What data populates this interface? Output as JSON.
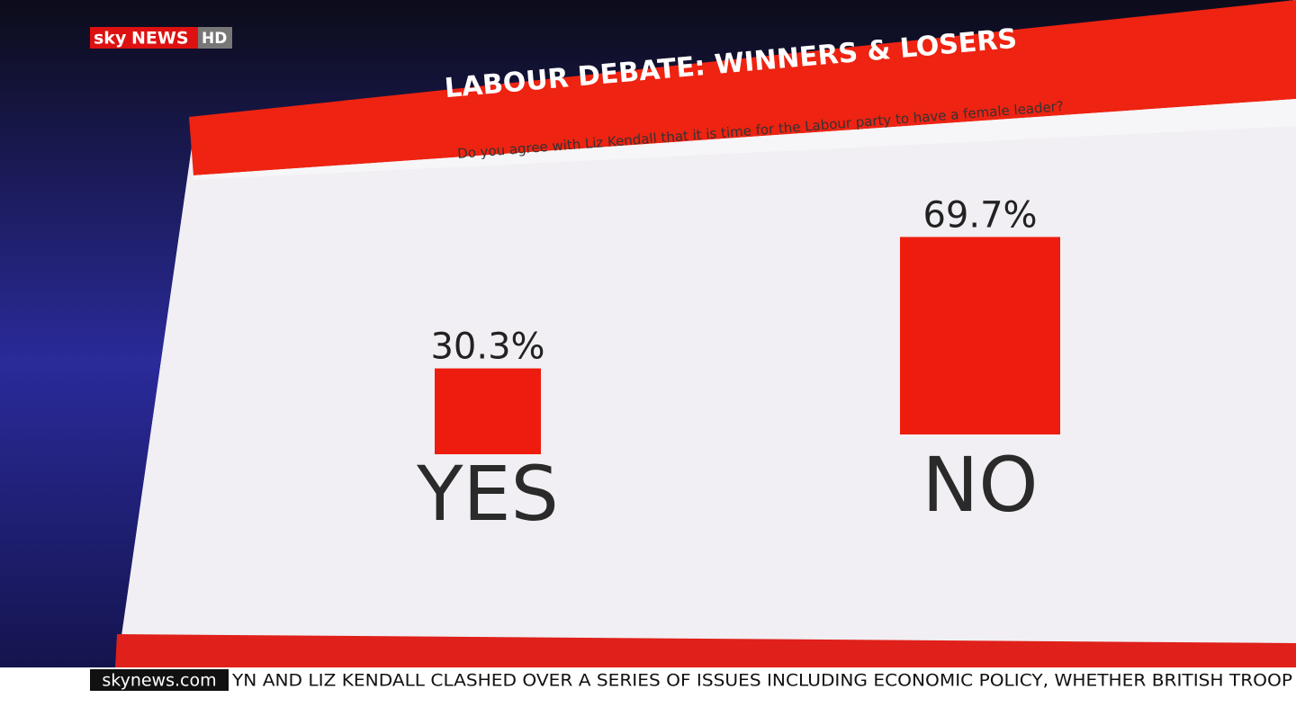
{
  "broadcast": {
    "logo": [
      "sky",
      "NEWS",
      "HD"
    ],
    "ticker_source": "skynews.com",
    "ticker_text": "YN AND LIZ KENDALL CLASHED OVER A SERIES OF ISSUES INCLUDING ECONOMIC POLICY, WHETHER BRITISH TROOP"
  },
  "chart_data": {
    "type": "bar",
    "title": "LABOUR DEBATE: WINNERS & LOSERS",
    "subtitle": "Do you agree with Liz Kendall that it is time for the Labour party to have a female leader?",
    "categories": [
      "YES",
      "NO"
    ],
    "values": [
      30.3,
      69.7
    ],
    "value_labels": [
      "30.3%",
      "69.7%"
    ],
    "color": "#ee1c0e"
  }
}
